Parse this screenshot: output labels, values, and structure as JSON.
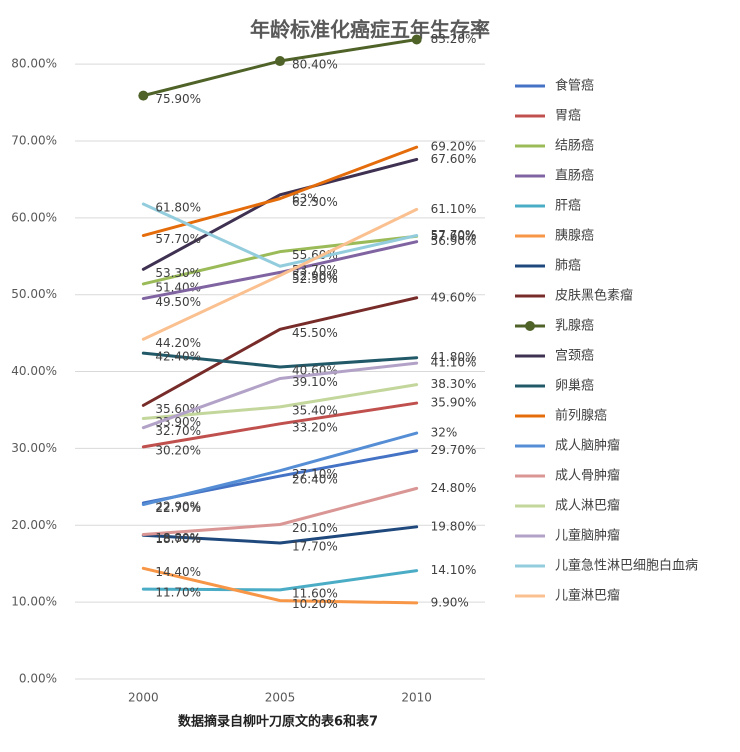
{
  "chart_data": {
    "type": "line",
    "title": "年龄标准化癌症五年生存率",
    "x_label": "数据摘录自柳叶刀原文的表6和表7",
    "categories": [
      "2000",
      "2005",
      "2010"
    ],
    "ylim": [
      0,
      86
    ],
    "yticks": [
      {
        "value": 0,
        "label": "0.00%"
      },
      {
        "value": 10,
        "label": "10.00%"
      },
      {
        "value": 20,
        "label": "20.00%"
      },
      {
        "value": 30,
        "label": "30.00%"
      },
      {
        "value": 40,
        "label": "40.00%"
      },
      {
        "value": 50,
        "label": "50.00%"
      },
      {
        "value": 60,
        "label": "60.00%"
      },
      {
        "value": 70,
        "label": "70.00%"
      },
      {
        "value": 80,
        "label": "80.00%"
      }
    ],
    "grid": true,
    "legend": "right",
    "series": [
      {
        "name": "食管癌",
        "color": "#4472c4",
        "values": [
          22.9,
          26.4,
          29.7
        ],
        "value_labels": [
          "22.90%",
          "26.40%",
          "29.70%"
        ]
      },
      {
        "name": "胃癌",
        "color": "#c0504d",
        "values": [
          30.2,
          33.2,
          35.9
        ],
        "value_labels": [
          "30.20%",
          "33.20%",
          "35.90%"
        ]
      },
      {
        "name": "结肠癌",
        "color": "#9bbb59",
        "values": [
          51.4,
          55.6,
          57.6
        ],
        "value_labels": [
          "51.40%",
          "55.60%",
          "57.60%"
        ]
      },
      {
        "name": "直肠癌",
        "color": "#8064a2",
        "values": [
          49.5,
          52.9,
          56.9
        ],
        "value_labels": [
          "49.50%",
          "52.90%",
          "56.90%"
        ]
      },
      {
        "name": "肝癌",
        "color": "#4bacc6",
        "values": [
          11.7,
          11.6,
          14.1
        ],
        "value_labels": [
          "11.70%",
          "11.60%",
          "14.10%"
        ]
      },
      {
        "name": "胰腺癌",
        "color": "#f79646",
        "values": [
          14.4,
          10.2,
          9.9
        ],
        "value_labels": [
          "14.40%",
          "10.20%",
          "9.90%"
        ]
      },
      {
        "name": "肺癌",
        "color": "#1f497d",
        "values": [
          18.7,
          17.7,
          19.8
        ],
        "value_labels": [
          "18.70%",
          "17.70%",
          "19.80%"
        ]
      },
      {
        "name": "皮肤黑色素瘤",
        "color": "#772c2a",
        "values": [
          35.6,
          45.5,
          49.6
        ],
        "value_labels": [
          "35.60%",
          "45.50%",
          "49.60%"
        ]
      },
      {
        "name": "乳腺癌",
        "color": "#4f6228",
        "markers": true,
        "values": [
          75.9,
          80.4,
          83.2
        ],
        "value_labels": [
          "75.90%",
          "80.40%",
          "83.20%"
        ]
      },
      {
        "name": "宫颈癌",
        "color": "#3f3151",
        "values": [
          53.3,
          63,
          67.6
        ],
        "value_labels": [
          "53.30%",
          "63%",
          "67.60%"
        ]
      },
      {
        "name": "卵巢癌",
        "color": "#215968",
        "values": [
          42.4,
          40.6,
          41.8
        ],
        "value_labels": [
          "42.40%",
          "40.60%",
          "41.80%"
        ]
      },
      {
        "name": "前列腺癌",
        "color": "#e46c0a",
        "values": [
          57.7,
          62.5,
          69.2
        ],
        "value_labels": [
          "57.70%",
          "62.50%",
          "69.20%"
        ]
      },
      {
        "name": "成人脑肿瘤",
        "color": "#558ed5",
        "values": [
          22.7,
          27.1,
          32
        ],
        "value_labels": [
          "22.70%",
          "27.10%",
          "32%"
        ]
      },
      {
        "name": "成人骨肿瘤",
        "color": "#d99694",
        "values": [
          18.8,
          20.1,
          24.8
        ],
        "value_labels": [
          "18.80%",
          "20.10%",
          "24.80%"
        ]
      },
      {
        "name": "成人淋巴瘤",
        "color": "#c3d69b",
        "values": [
          33.9,
          35.4,
          38.3
        ],
        "value_labels": [
          "33.90%",
          "35.40%",
          "38.30%"
        ]
      },
      {
        "name": "儿童脑肿瘤",
        "color": "#b3a2c7",
        "values": [
          32.7,
          39.1,
          41.1
        ],
        "value_labels": [
          "32.70%",
          "39.10%",
          "41.10%"
        ]
      },
      {
        "name": "儿童急性淋巴细胞白血病",
        "color": "#93cddd",
        "values": [
          61.8,
          53.7,
          57.7
        ],
        "value_labels": [
          "61.80%",
          "53.70%",
          "57.70%"
        ]
      },
      {
        "name": "儿童淋巴瘤",
        "color": "#fac090",
        "values": [
          44.2,
          52.5,
          61.1
        ],
        "value_labels": [
          "44.20%",
          "52.50%",
          "61.10%"
        ]
      }
    ]
  }
}
